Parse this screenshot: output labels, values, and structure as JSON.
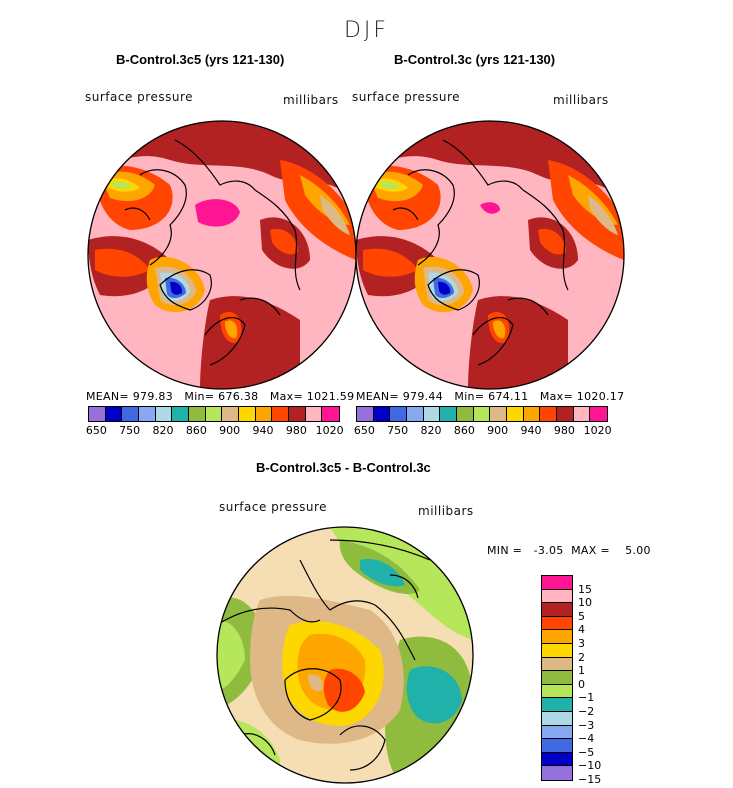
{
  "season": "DJF",
  "units_label": "millibars",
  "variable_label": "surface pressure",
  "panels": [
    {
      "title": "B-Control.3c5 (yrs 121-130)",
      "stats": {
        "mean_label": "MEAN=",
        "mean": "979.83",
        "min_label": "Min=",
        "min": "676.38",
        "max_label": "Max=",
        "max": "1021.59"
      }
    },
    {
      "title": "B-Control.3c (yrs 121-130)",
      "stats": {
        "mean_label": "MEAN=",
        "mean": "979.44",
        "min_label": "Min=",
        "min": "674.11",
        "max_label": "Max=",
        "max": "1020.17"
      }
    }
  ],
  "diff_panel": {
    "title": "B-Control.3c5 - B-Control.3c",
    "minmax": {
      "min_label": "MIN =",
      "min": "-3.05",
      "max_label": "MAX =",
      "max": "5.00"
    }
  },
  "colors": {
    "lavender": "#9370db",
    "navy": "#0000c8",
    "blue": "#4169e1",
    "lightblue": "#87a9f0",
    "paleblue": "#add8e6",
    "teal": "#20b2aa",
    "olive": "#8fbc3f",
    "lime": "#b6e65a",
    "tan": "#deb887",
    "wheat": "#f5deb3",
    "yellow": "#ffd700",
    "orange": "#ffa500",
    "orangered": "#ff4500",
    "firebrick": "#b22222",
    "pink": "#ffb6c1",
    "magenta": "#ff1493"
  },
  "chart_data": [
    {
      "type": "heatmap",
      "title": "B-Control.3c5 (yrs 121-130)",
      "projection": "north polar stereographic",
      "variable": "surface pressure",
      "units": "millibars",
      "mean": 979.83,
      "min": 676.38,
      "max": 1021.59,
      "colorbar_levels": [
        650,
        700,
        750,
        800,
        820,
        840,
        860,
        880,
        900,
        920,
        940,
        960,
        980,
        1000,
        1020
      ],
      "colorbar_tick_labels": [
        "650",
        "750",
        "820",
        "860",
        "900",
        "940",
        "980",
        "1020"
      ]
    },
    {
      "type": "heatmap",
      "title": "B-Control.3c (yrs 121-130)",
      "projection": "north polar stereographic",
      "variable": "surface pressure",
      "units": "millibars",
      "mean": 979.44,
      "min": 674.11,
      "max": 1020.17,
      "colorbar_levels": [
        650,
        700,
        750,
        800,
        820,
        840,
        860,
        880,
        900,
        920,
        940,
        960,
        980,
        1000,
        1020
      ],
      "colorbar_tick_labels": [
        "650",
        "750",
        "820",
        "860",
        "900",
        "940",
        "980",
        "1020"
      ]
    },
    {
      "type": "heatmap",
      "title": "B-Control.3c5 - B-Control.3c",
      "projection": "north polar stereographic",
      "variable": "surface pressure",
      "units": "millibars",
      "min": -3.05,
      "max": 5.0,
      "colorbar_levels": [
        15,
        10,
        5,
        4,
        3,
        2,
        1,
        0,
        -1,
        -2,
        -3,
        -4,
        -5,
        -10,
        -15
      ],
      "colorbar_tick_labels": [
        "15",
        "10",
        "5",
        "4",
        "3",
        "2",
        "1",
        "0",
        "−1",
        "−2",
        "−3",
        "−4",
        "−5",
        "−10",
        "−15"
      ]
    }
  ]
}
